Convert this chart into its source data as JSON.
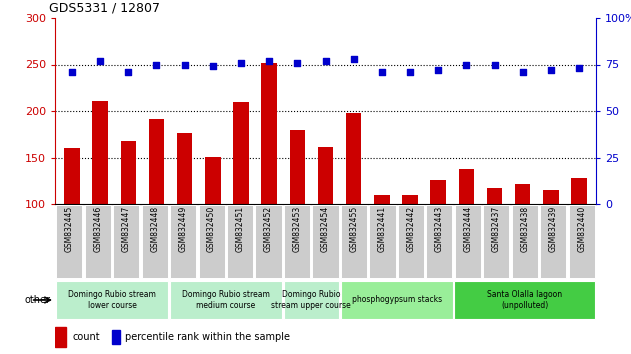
{
  "title": "GDS5331 / 12807",
  "samples": [
    "GSM832445",
    "GSM832446",
    "GSM832447",
    "GSM832448",
    "GSM832449",
    "GSM832450",
    "GSM832451",
    "GSM832452",
    "GSM832453",
    "GSM832454",
    "GSM832455",
    "GSM832441",
    "GSM832442",
    "GSM832443",
    "GSM832444",
    "GSM832437",
    "GSM832438",
    "GSM832439",
    "GSM832440"
  ],
  "counts": [
    160,
    211,
    168,
    191,
    176,
    151,
    210,
    252,
    180,
    161,
    198,
    110,
    110,
    126,
    138,
    117,
    121,
    115,
    128
  ],
  "percentiles": [
    71,
    77,
    71,
    75,
    75,
    74,
    76,
    77,
    76,
    77,
    78,
    71,
    71,
    72,
    75,
    75,
    71,
    72,
    73
  ],
  "count_color": "#cc0000",
  "percentile_color": "#0000cc",
  "ylim_left": [
    100,
    300
  ],
  "ylim_right": [
    0,
    100
  ],
  "yticks_left": [
    100,
    150,
    200,
    250,
    300
  ],
  "yticks_right": [
    0,
    25,
    50,
    75,
    100
  ],
  "hlines": [
    150,
    200,
    250
  ],
  "groups": [
    {
      "label": "Domingo Rubio stream\nlower course",
      "start": 0,
      "end": 4,
      "color": "#bbeecc"
    },
    {
      "label": "Domingo Rubio stream\nmedium course",
      "start": 4,
      "end": 8,
      "color": "#bbeecc"
    },
    {
      "label": "Domingo Rubio\nstream upper course",
      "start": 8,
      "end": 10,
      "color": "#bbeecc"
    },
    {
      "label": "phosphogypsum stacks",
      "start": 10,
      "end": 14,
      "color": "#99ee99"
    },
    {
      "label": "Santa Olalla lagoon\n(unpolluted)",
      "start": 14,
      "end": 19,
      "color": "#44cc44"
    }
  ],
  "bar_width": 0.55,
  "fig_width": 6.31,
  "fig_height": 3.54,
  "dpi": 100,
  "sample_box_color": "#cccccc",
  "background_color": "white"
}
